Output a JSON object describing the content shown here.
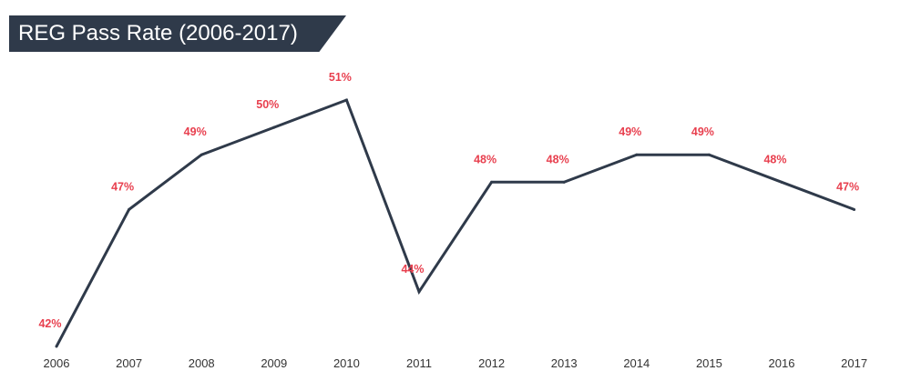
{
  "chart_data": {
    "type": "line",
    "title": "REG Pass Rate (2006-2017)",
    "xlabel": "",
    "ylabel": "",
    "categories": [
      "2006",
      "2007",
      "2008",
      "2009",
      "2010",
      "2011",
      "2012",
      "2013",
      "2014",
      "2015",
      "2016",
      "2017"
    ],
    "values": [
      42,
      47,
      49,
      50,
      51,
      44,
      48,
      48,
      49,
      49,
      48,
      47
    ],
    "value_labels": [
      "42%",
      "47%",
      "49%",
      "50%",
      "51%",
      "44%",
      "48%",
      "48%",
      "49%",
      "49%",
      "48%",
      "47%"
    ],
    "ylim": [
      41.5,
      52
    ],
    "grid": false,
    "legend": "none"
  },
  "colors": {
    "title_background": "#2f3a4a",
    "title_text": "#ffffff",
    "line": "#2f3a4a",
    "data_label": "#e8404f",
    "tick_label": "#333333"
  }
}
